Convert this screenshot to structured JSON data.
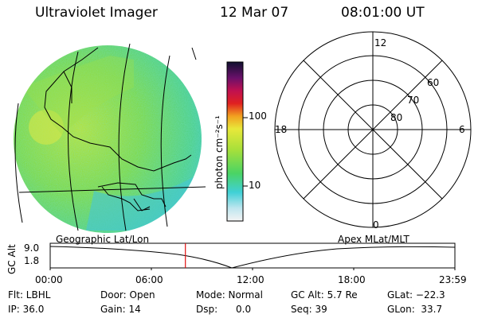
{
  "header": {
    "title": "Ultraviolet Imager",
    "date": "12 Mar 07",
    "time": "08:01:00 UT"
  },
  "colorbar": {
    "unit_label": "photon cm⁻²s⁻¹",
    "ticks": [
      "100",
      "10"
    ]
  },
  "polar_plot": {
    "mlt_labels": {
      "top": "12",
      "left": "18",
      "right": "6",
      "bottom": "0"
    },
    "mlat_labels": [
      "60",
      "70",
      "80"
    ]
  },
  "timeline": {
    "left_label": "Geographic Lat/Lon",
    "right_label": "Apex MLat/MLT",
    "axis_title": "GC Alt",
    "y_ticks": [
      "9.0",
      "1.8"
    ],
    "x_ticks": [
      "00:00",
      "06:00",
      "12:00",
      "18:00",
      "23:59"
    ],
    "current_time_fraction": 0.334
  },
  "info": {
    "flt": "Flt: LBHL",
    "ip": "IP: 36.0",
    "door": "Door: Open",
    "gain": "Gain: 14",
    "mode": "Mode: Normal",
    "dsp": "Dsp:      0.0",
    "gc_alt": "GC Alt: 5.7 Re",
    "seq": "Seq: 39",
    "glat": "GLat: −22.3",
    "glon": "GLon:  33.7"
  }
}
